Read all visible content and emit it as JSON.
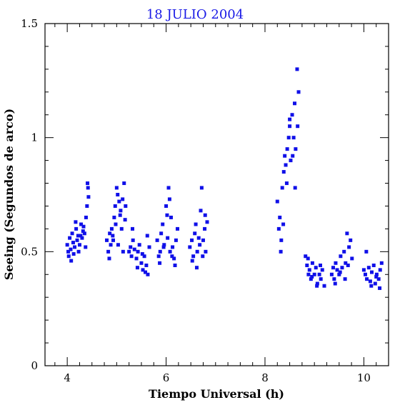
{
  "chart_data": {
    "type": "scatter",
    "title": "18 JULIO 2004",
    "xlabel": "Tiempo Universal (h)",
    "ylabel": "Seeing (Segundos de arco)",
    "xlim": [
      3.55,
      10.5
    ],
    "ylim": [
      0,
      1.5
    ],
    "xticks": [
      4,
      6,
      8,
      10
    ],
    "xtick_labels": [
      "4",
      "6",
      "8",
      "10"
    ],
    "yticks": [
      0,
      0.5,
      1,
      1.5
    ],
    "ytick_labels": [
      "0",
      "0.5",
      "1",
      "1.5"
    ],
    "grid": false,
    "series": [
      {
        "color": "#1010e8",
        "x": [
          4.0,
          4.02,
          4.05,
          4.07,
          4.1,
          4.12,
          4.15,
          4.18,
          4.2,
          4.22,
          4.25,
          4.28,
          4.3,
          4.32,
          4.35,
          4.38,
          4.4,
          4.42,
          4.03,
          4.08,
          4.13,
          4.17,
          4.23,
          4.27,
          4.33,
          4.37,
          4.41,
          4.43,
          4.8,
          4.83,
          4.86,
          4.88,
          4.9,
          4.92,
          4.95,
          4.97,
          5.0,
          5.02,
          5.05,
          5.08,
          5.1,
          5.12,
          5.15,
          5.18,
          4.85,
          4.93,
          4.98,
          5.03,
          5.07,
          5.13,
          5.17,
          5.25,
          5.28,
          5.3,
          5.33,
          5.36,
          5.4,
          5.43,
          5.46,
          5.5,
          5.53,
          5.56,
          5.6,
          5.63,
          5.66,
          5.32,
          5.42,
          5.52,
          5.58,
          5.62,
          5.82,
          5.85,
          5.88,
          5.9,
          5.93,
          5.96,
          6.0,
          6.03,
          6.05,
          6.08,
          6.1,
          6.13,
          6.16,
          6.2,
          6.23,
          5.87,
          5.95,
          6.02,
          6.07,
          6.12,
          6.18,
          6.48,
          6.52,
          6.55,
          6.58,
          6.6,
          6.63,
          6.66,
          6.7,
          6.72,
          6.75,
          6.78,
          6.8,
          6.83,
          6.53,
          6.62,
          6.68,
          6.74,
          6.79,
          8.25,
          8.28,
          8.3,
          8.33,
          8.35,
          8.38,
          8.4,
          8.42,
          8.45,
          8.48,
          8.5,
          8.52,
          8.55,
          8.58,
          8.6,
          8.62,
          8.65,
          8.68,
          8.32,
          8.37,
          8.44,
          8.5,
          8.56,
          8.61,
          8.66,
          8.82,
          8.85,
          8.88,
          8.9,
          8.93,
          8.96,
          9.0,
          9.03,
          9.06,
          9.1,
          9.13,
          9.16,
          9.2,
          8.87,
          8.95,
          9.05,
          9.12,
          9.35,
          9.38,
          9.4,
          9.43,
          9.46,
          9.5,
          9.53,
          9.56,
          9.6,
          9.63,
          9.66,
          9.7,
          9.73,
          9.76,
          9.42,
          9.52,
          9.62,
          9.68,
          10.0,
          10.03,
          10.06,
          10.1,
          10.13,
          10.16,
          10.2,
          10.23,
          10.26,
          10.3,
          10.33,
          10.36,
          10.05,
          10.15,
          10.25,
          10.32
        ],
        "y": [
          0.53,
          0.5,
          0.56,
          0.51,
          0.58,
          0.54,
          0.52,
          0.6,
          0.55,
          0.57,
          0.53,
          0.62,
          0.56,
          0.59,
          0.58,
          0.65,
          0.7,
          0.78,
          0.48,
          0.46,
          0.49,
          0.63,
          0.5,
          0.57,
          0.61,
          0.52,
          0.8,
          0.74,
          0.55,
          0.5,
          0.58,
          0.53,
          0.6,
          0.57,
          0.65,
          0.7,
          0.78,
          0.75,
          0.72,
          0.68,
          0.6,
          0.73,
          0.8,
          0.7,
          0.47,
          0.55,
          0.62,
          0.53,
          0.66,
          0.5,
          0.64,
          0.5,
          0.52,
          0.48,
          0.55,
          0.51,
          0.47,
          0.5,
          0.53,
          0.45,
          0.42,
          0.48,
          0.44,
          0.4,
          0.52,
          0.6,
          0.43,
          0.49,
          0.41,
          0.57,
          0.55,
          0.48,
          0.5,
          0.58,
          0.62,
          0.53,
          0.7,
          0.56,
          0.78,
          0.5,
          0.65,
          0.52,
          0.47,
          0.55,
          0.6,
          0.45,
          0.52,
          0.66,
          0.73,
          0.48,
          0.44,
          0.52,
          0.55,
          0.48,
          0.58,
          0.62,
          0.5,
          0.56,
          0.68,
          0.78,
          0.55,
          0.6,
          0.5,
          0.63,
          0.46,
          0.43,
          0.53,
          0.48,
          0.66,
          0.72,
          0.6,
          0.65,
          0.55,
          0.78,
          0.85,
          0.92,
          0.88,
          0.95,
          1.0,
          1.05,
          0.9,
          1.1,
          1.0,
          1.15,
          0.95,
          1.3,
          1.2,
          0.5,
          0.62,
          0.8,
          1.08,
          0.92,
          0.78,
          1.05,
          0.48,
          0.44,
          0.4,
          0.42,
          0.38,
          0.45,
          0.4,
          0.43,
          0.36,
          0.4,
          0.38,
          0.42,
          0.35,
          0.47,
          0.39,
          0.35,
          0.44,
          0.4,
          0.43,
          0.38,
          0.45,
          0.42,
          0.4,
          0.48,
          0.43,
          0.5,
          0.45,
          0.58,
          0.52,
          0.55,
          0.47,
          0.36,
          0.41,
          0.38,
          0.44,
          0.42,
          0.4,
          0.38,
          0.43,
          0.37,
          0.41,
          0.44,
          0.36,
          0.4,
          0.38,
          0.42,
          0.45,
          0.5,
          0.35,
          0.39,
          0.34
        ]
      }
    ]
  }
}
